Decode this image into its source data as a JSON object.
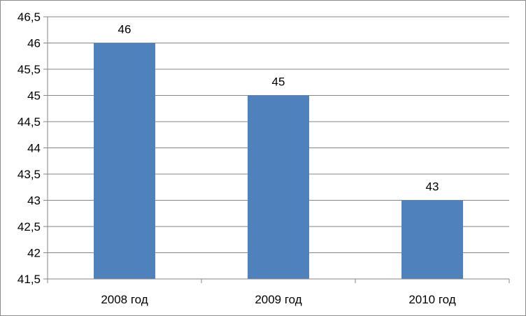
{
  "chart_data": {
    "type": "bar",
    "categories": [
      "2008 год",
      "2009 год",
      "2010 год"
    ],
    "values": [
      46,
      45,
      43
    ],
    "data_labels": [
      "46",
      "45",
      "43"
    ],
    "ylim": [
      41.5,
      46.5
    ],
    "y_ticks": [
      "41,5",
      "42",
      "42,5",
      "43",
      "43,5",
      "44",
      "44,5",
      "45",
      "45,5",
      "46",
      "46,5"
    ],
    "grid": true,
    "legend": "none",
    "bar_color": "#4f81bd",
    "grid_color": "#868686"
  }
}
